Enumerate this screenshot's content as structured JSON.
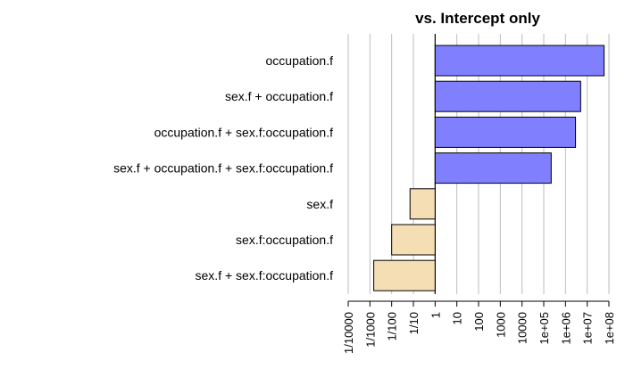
{
  "chart_data": {
    "type": "bar",
    "orientation": "horizontal",
    "title": "vs. Intercept only",
    "scale": "log10",
    "xlim": [
      0.0001,
      100000000
    ],
    "baseline": 1,
    "grid": true,
    "categories": [
      "occupation.f",
      "sex.f + occupation.f",
      "occupation.f + sex.f:occupation.f",
      "sex.f + occupation.f + sex.f:occupation.f",
      "sex.f",
      "sex.f:occupation.f",
      "sex.f + sex.f:occupation.f"
    ],
    "values": [
      60000000,
      5000000,
      2900000,
      220000,
      0.07,
      0.01,
      0.0015
    ],
    "tick_values": [
      0.0001,
      0.001,
      0.01,
      0.1,
      1,
      10,
      100,
      1000,
      10000,
      100000,
      1000000,
      10000000,
      100000000
    ],
    "tick_labels": [
      "1/10000",
      "1/1000",
      "1/100",
      "1/10",
      "1",
      "10",
      "100",
      "1000",
      "10000",
      "1e+05",
      "1e+06",
      "1e+07",
      "1e+08"
    ],
    "colors": {
      "positive": "#8080ff",
      "negative": "#f5deb3",
      "outline": "#000000",
      "grid": "#bebebe"
    }
  }
}
